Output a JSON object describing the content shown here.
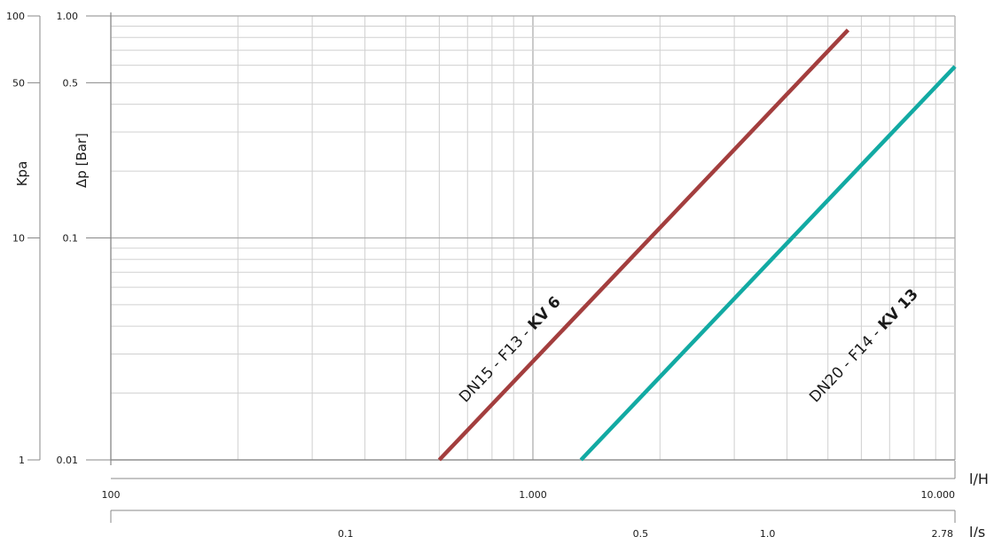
{
  "chart_data": {
    "type": "line",
    "x_scale": "log",
    "y_scale": "log",
    "grid": true,
    "x_axes": [
      {
        "unit": "l/H",
        "range": [
          100,
          10000
        ],
        "ticks": [
          {
            "value": 100,
            "label": "100"
          },
          {
            "value": 1000,
            "label": "1.000"
          },
          {
            "value": 10000,
            "label": "10.000"
          }
        ]
      },
      {
        "unit": "l/s",
        "range": [
          0.02778,
          2.78
        ],
        "ticks": [
          {
            "value": 0.1,
            "label": "0.1"
          },
          {
            "value": 0.5,
            "label": "0.5"
          },
          {
            "value": 1.0,
            "label": "1.0"
          },
          {
            "value": 2.78,
            "label": "2.78"
          }
        ]
      }
    ],
    "y_axes": [
      {
        "label": "Δp [Bar]",
        "range": [
          0.01,
          1.0
        ],
        "ticks": [
          {
            "value": 0.01,
            "label": "0.01"
          },
          {
            "value": 0.1,
            "label": "0.1"
          },
          {
            "value": 0.5,
            "label": "0.5"
          },
          {
            "value": 1.0,
            "label": "1.00"
          }
        ]
      },
      {
        "label": "Kpa",
        "range": [
          1,
          100
        ],
        "ticks": [
          {
            "value": 1,
            "label": "1"
          },
          {
            "value": 10,
            "label": "10"
          },
          {
            "value": 50,
            "label": "50"
          },
          {
            "value": 100,
            "label": "100"
          }
        ]
      }
    ],
    "series": [
      {
        "name_prefix": "DN15 - F13 - ",
        "name_kv": "KV 6",
        "color": "#a33e3e",
        "x": [
          600,
          5580
        ],
        "y": [
          0.01,
          0.865
        ]
      },
      {
        "name_prefix": "DN20 - F14 - ",
        "name_kv": "KV 13",
        "color": "#12aaa3",
        "x": [
          1300,
          10000
        ],
        "y": [
          0.01,
          0.592
        ]
      }
    ]
  }
}
